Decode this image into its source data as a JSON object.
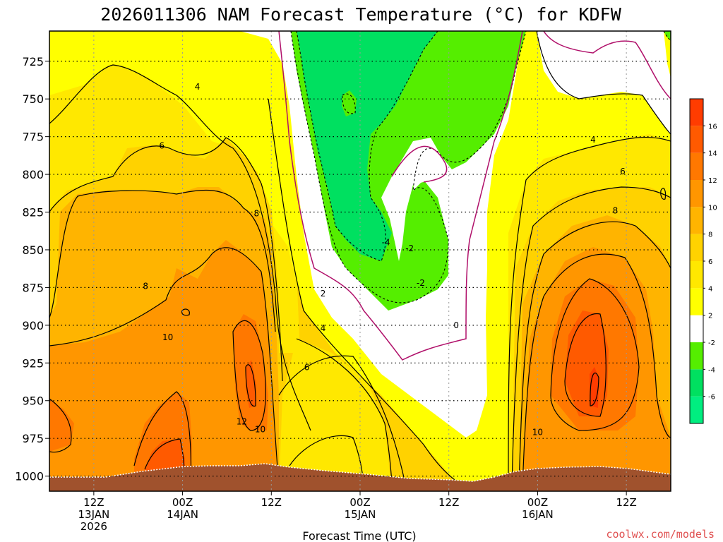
{
  "chart_data": {
    "type": "heatmap",
    "title": "2026011306 NAM Forecast Temperature (°C) for KDFW",
    "xlabel": "Forecast Time (UTC)",
    "ylabel": "",
    "ylim": [
      1010,
      705
    ],
    "y_ticks": [
      725,
      750,
      775,
      800,
      825,
      850,
      875,
      900,
      925,
      950,
      975,
      1000
    ],
    "x_ticks": [
      {
        "hour": 6,
        "lines": [
          "12Z",
          "13JAN",
          "2026"
        ]
      },
      {
        "hour": 18,
        "lines": [
          "00Z",
          "14JAN"
        ]
      },
      {
        "hour": 30,
        "lines": [
          "12Z"
        ]
      },
      {
        "hour": 42,
        "lines": [
          "00Z",
          "15JAN"
        ]
      },
      {
        "hour": 54,
        "lines": [
          "12Z"
        ]
      },
      {
        "hour": 66,
        "lines": [
          "00Z",
          "16JAN"
        ]
      },
      {
        "hour": 78,
        "lines": [
          "12Z"
        ]
      }
    ],
    "xlim": [
      0,
      84
    ],
    "grid": true,
    "colorbar": {
      "placement": "right",
      "bands": [
        {
          "from": -8,
          "to": -6,
          "color": "#00ee80"
        },
        {
          "from": -6,
          "to": -4,
          "color": "#00e060"
        },
        {
          "from": -4,
          "to": -2,
          "color": "#55ee00"
        },
        {
          "from": -2,
          "to": 2,
          "color": "#ffffff"
        },
        {
          "from": 2,
          "to": 4,
          "color": "#ffff00"
        },
        {
          "from": 4,
          "to": 6,
          "color": "#ffe800"
        },
        {
          "from": 6,
          "to": 8,
          "color": "#ffd200"
        },
        {
          "from": 8,
          "to": 10,
          "color": "#ffb400"
        },
        {
          "from": 10,
          "to": 12,
          "color": "#ff9600"
        },
        {
          "from": 12,
          "to": 14,
          "color": "#ff7800"
        },
        {
          "from": 14,
          "to": 16,
          "color": "#ff5a00"
        },
        {
          "from": 16,
          "to": 18,
          "color": "#ff3c00"
        }
      ],
      "labels": [
        "-6",
        "-4",
        "-2",
        "2",
        "4",
        "6",
        "8",
        "10",
        "12",
        "14",
        "16"
      ]
    },
    "ground_color": "#a0522d",
    "freezing_line_color": "#b0106a",
    "contour_labels": [
      {
        "text": "4",
        "hour": 20.0,
        "p": 742
      },
      {
        "text": "6",
        "hour": 15.2,
        "p": 781
      },
      {
        "text": "8",
        "hour": 28.0,
        "p": 826
      },
      {
        "text": "8",
        "hour": 13.0,
        "p": 874
      },
      {
        "text": "10",
        "hour": 16.0,
        "p": 908
      },
      {
        "text": "12",
        "hour": 26.0,
        "p": 964
      },
      {
        "text": "10",
        "hour": 28.5,
        "p": 969
      },
      {
        "text": "2",
        "hour": 37.0,
        "p": 879
      },
      {
        "text": "4",
        "hour": 37.0,
        "p": 902
      },
      {
        "text": "6",
        "hour": 34.8,
        "p": 928
      },
      {
        "text": "-4",
        "hour": 45.5,
        "p": 845
      },
      {
        "text": "-2",
        "hour": 48.7,
        "p": 849
      },
      {
        "text": "-2",
        "hour": 50.2,
        "p": 872
      },
      {
        "text": "0",
        "hour": 55.0,
        "p": 900
      },
      {
        "text": "4",
        "hour": 73.5,
        "p": 777
      },
      {
        "text": "6",
        "hour": 77.5,
        "p": 798
      },
      {
        "text": "8",
        "hour": 76.5,
        "p": 824
      },
      {
        "text": "10",
        "hour": 66.0,
        "p": 971
      }
    ],
    "credit": "coolwx.com/models"
  }
}
